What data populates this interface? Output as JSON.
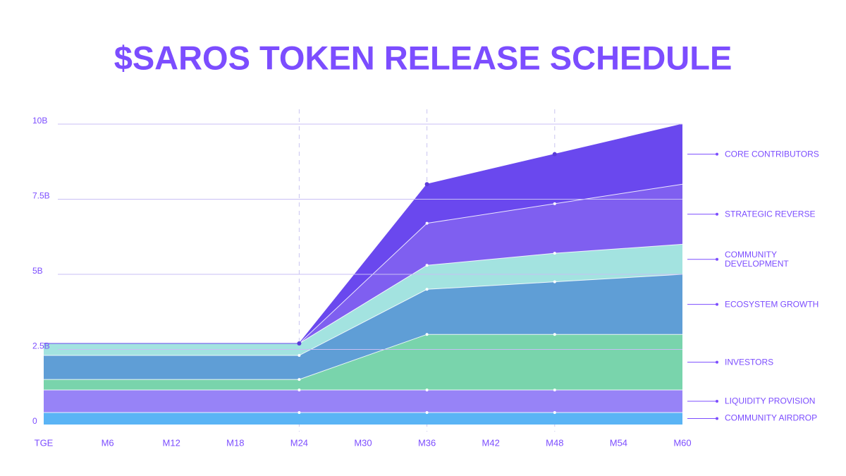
{
  "chart_data": {
    "type": "stacked-area",
    "title": "$SAROS TOKEN RELEASE SCHEDULE",
    "x": [
      0,
      24,
      36,
      48,
      60
    ],
    "xlim": [
      0,
      60
    ],
    "xticks": [
      {
        "value": 0,
        "label": "TGE"
      },
      {
        "value": 6,
        "label": "M6"
      },
      {
        "value": 12,
        "label": "M12"
      },
      {
        "value": 18,
        "label": "M18"
      },
      {
        "value": 24,
        "label": "M24"
      },
      {
        "value": 30,
        "label": "M30"
      },
      {
        "value": 36,
        "label": "M36"
      },
      {
        "value": 42,
        "label": "M42"
      },
      {
        "value": 48,
        "label": "M48"
      },
      {
        "value": 54,
        "label": "M54"
      },
      {
        "value": 60,
        "label": "M60"
      }
    ],
    "ylim": [
      0,
      10
    ],
    "yticks": [
      0,
      {
        "value": 2.5,
        "label": "2.5B"
      },
      {
        "value": 5,
        "label": "5B"
      },
      {
        "value": 7.5,
        "label": "7.5B"
      },
      {
        "value": 10,
        "label": "10B"
      }
    ],
    "grid": true,
    "legend": "right",
    "series": [
      {
        "name": "COMMUNITY AIRDROP",
        "color": "#5ab4f5",
        "values": [
          0.4,
          0.4,
          0.4,
          0.4,
          0.4
        ]
      },
      {
        "name": "LIQUIDITY PROVISION",
        "color": "#9783f7",
        "values": [
          0.75,
          0.75,
          0.75,
          0.75,
          0.75
        ]
      },
      {
        "name": "INVESTORS",
        "color": "#79d4ac",
        "values": [
          0.35,
          0.35,
          1.85,
          1.85,
          1.85
        ]
      },
      {
        "name": "ECOSYSTEM GROWTH",
        "color": "#5f9ed6",
        "values": [
          0.8,
          0.8,
          1.5,
          1.75,
          2.0
        ]
      },
      {
        "name": "COMMUNITY DEVELOPMENT",
        "color": "#a3e3e0",
        "values": [
          0.4,
          0.4,
          0.8,
          0.95,
          1.0
        ]
      },
      {
        "name": "STRATEGIC REVERSE",
        "color": "#7f5ff0",
        "values": [
          0,
          0,
          1.4,
          1.65,
          2.0
        ]
      },
      {
        "name": "CORE CONTRIBUTORS",
        "color": "#6a48ee",
        "values": [
          0,
          0,
          1.3,
          1.65,
          2.0
        ]
      }
    ]
  }
}
